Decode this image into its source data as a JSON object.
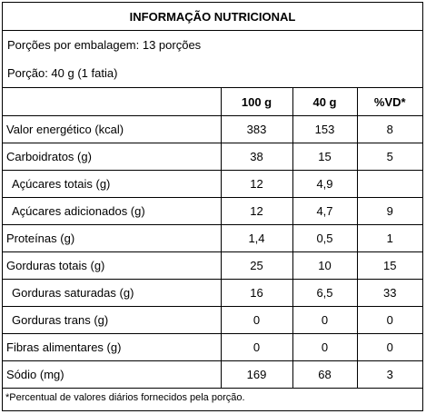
{
  "title": "INFORMAÇÃO NUTRICIONAL",
  "servings_per_package": "Porções por embalagem: 13 porções",
  "serving_size": "Porção: 40 g (1 fatia)",
  "headers": [
    "",
    "100 g",
    "40 g",
    "%VD*"
  ],
  "rows": [
    {
      "name": "Valor energético (kcal)",
      "c100": "383",
      "c40": "153",
      "vd": "8"
    },
    {
      "name": "Carboidratos (g)",
      "c100": "38",
      "c40": "15",
      "vd": "5"
    },
    {
      "name": "Açúcares totais (g)",
      "c100": "12",
      "c40": "4,9",
      "vd": ""
    },
    {
      "name": "Açúcares adicionados (g)",
      "c100": "12",
      "c40": "4,7",
      "vd": "9"
    },
    {
      "name": "Proteínas (g)",
      "c100": "1,4",
      "c40": "0,5",
      "vd": "1"
    },
    {
      "name": "Gorduras totais (g)",
      "c100": "25",
      "c40": "10",
      "vd": "15"
    },
    {
      "name": "Gorduras saturadas (g)",
      "c100": "16",
      "c40": "6,5",
      "vd": "33"
    },
    {
      "name": "Gorduras trans (g)",
      "c100": "0",
      "c40": "0",
      "vd": "0"
    },
    {
      "name": "Fibras alimentares (g)",
      "c100": "0",
      "c40": "0",
      "vd": "0"
    },
    {
      "name": "Sódio (mg)",
      "c100": "169",
      "c40": "68",
      "vd": "3"
    }
  ],
  "footnote": "*Percentual de valores diários fornecidos pela porção."
}
